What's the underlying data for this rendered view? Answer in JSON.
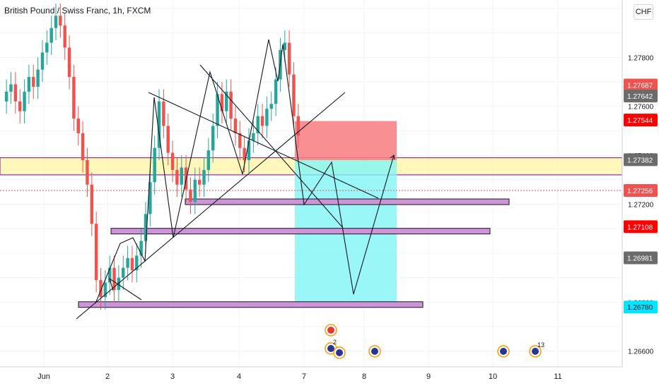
{
  "header": {
    "symbol_title": "British Pound / Swiss Franc, 1h, FXCM",
    "currency_button": "CHF"
  },
  "colors": {
    "up_candle": "#26a69a",
    "down_candle": "#ef5350",
    "zone_fill": "#fff59d",
    "zone_border": "#9c27b0",
    "support_box": "#ce93d8",
    "stop_fill": "#f77c80",
    "target_fill": "#80f5f5",
    "last_price_bg": "#ff3b30"
  },
  "chart_data": {
    "type": "candlestick",
    "ylim": [
      1.2655,
      1.2802
    ],
    "price_axis_ticks": [
      "1.27800",
      "1.27600",
      "1.27400",
      "1.27200",
      "1.26800",
      "1.26600"
    ],
    "price_labels": [
      {
        "value": 1.27687,
        "text": "1.27687",
        "color": "#ef5350"
      },
      {
        "value": 1.27642,
        "text": "1.27642",
        "color": "#6b6b6b"
      },
      {
        "value": 1.27544,
        "text": "1.27544",
        "color": "#ff0000"
      },
      {
        "value": 1.27382,
        "text": "1.27382",
        "color": "#6b6b6b"
      },
      {
        "value": 1.27256,
        "text": "1.27256",
        "color": "#ef5350"
      },
      {
        "value": 1.27108,
        "text": "1.27108",
        "color": "#ff0000"
      },
      {
        "value": 1.26981,
        "text": "1.26981",
        "color": "#6b6b6b"
      },
      {
        "value": 1.2678,
        "text": "1.26780",
        "color": "#00e5ff"
      }
    ],
    "x_axis_labels": [
      "Jun",
      "2",
      "3",
      "4",
      "7",
      "8",
      "9",
      "10",
      "11"
    ],
    "resistance_zone": [
      1.2732,
      1.2739
    ],
    "support_lines": [
      {
        "from": "2",
        "to": "8",
        "price": 1.2679
      },
      {
        "from": "3",
        "to": "9",
        "price": 1.2709
      },
      {
        "from": "3",
        "to": "8",
        "price": 1.2721
      }
    ],
    "position": {
      "entry": 1.2738,
      "stop": 1.2754,
      "target": 1.2678
    },
    "candles_close": [
      1.2766,
      1.2769,
      1.2762,
      1.2758,
      1.2766,
      1.2772,
      1.2768,
      1.2775,
      1.2782,
      1.2786,
      1.2792,
      1.2797,
      1.2793,
      1.2784,
      1.2772,
      1.2755,
      1.2749,
      1.2738,
      1.2728,
      1.2712,
      1.2689,
      1.2682,
      1.2688,
      1.2694,
      1.2685,
      1.269,
      1.2694,
      1.2698,
      1.2693,
      1.2699,
      1.2705,
      1.2716,
      1.2729,
      1.2743,
      1.2762,
      1.2752,
      1.2741,
      1.2734,
      1.2728,
      1.2735,
      1.2726,
      1.2721,
      1.273,
      1.2728,
      1.2734,
      1.2742,
      1.2752,
      1.2765,
      1.2758,
      1.2766,
      1.2755,
      1.2749,
      1.2743,
      1.2738,
      1.2746,
      1.2749,
      1.2756,
      1.2752,
      1.2759,
      1.2761,
      1.2771,
      1.2783,
      1.2786,
      1.2773,
      1.2756,
      1.2748
    ]
  },
  "events": [
    {
      "label": "swiss-flag-icon",
      "text": ""
    },
    {
      "label": "uk-flag-icon",
      "text": "2"
    },
    {
      "label": "uk-flag-icon",
      "text": ""
    },
    {
      "label": "uk-flag-icon",
      "text": ""
    },
    {
      "label": "uk-flag-icon",
      "text": ""
    },
    {
      "label": "uk-flag-icon",
      "text": "13"
    }
  ]
}
